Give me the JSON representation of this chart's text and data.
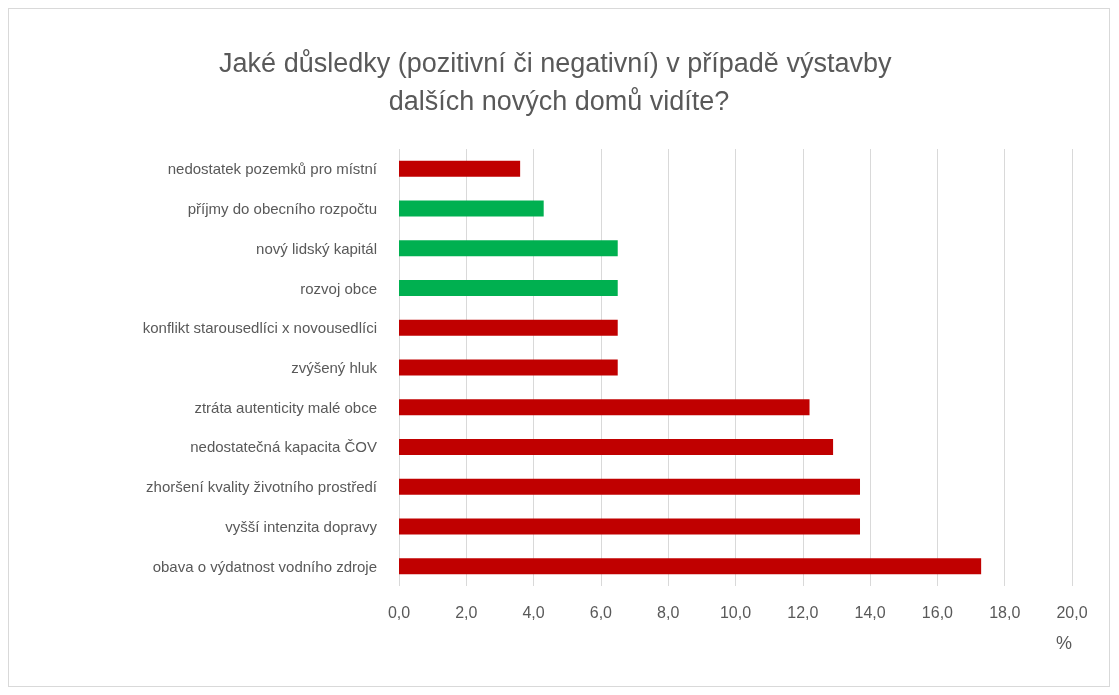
{
  "chart_data": {
    "type": "bar",
    "orientation": "horizontal",
    "title": "Jaké důsledky (pozitivní či negativní) v případě výstavby dalších nových domů vidíte?",
    "xlabel": "%",
    "categories": [
      "nedostatek pozemků pro místní",
      "příjmy do obecního rozpočtu",
      "nový lidský kapitál",
      "rozvoj obce",
      "konflikt starousedlíci x novousedlíci",
      "zvýšený hluk",
      "ztráta autenticity malé obce",
      "nedostatečná kapacita ČOV",
      "zhoršení kvality životního prostředí",
      "vyšší intenzita dopravy",
      "obava o výdatnost vodního zdroje"
    ],
    "values": [
      3.6,
      4.3,
      6.5,
      6.5,
      6.5,
      6.5,
      12.2,
      12.9,
      13.7,
      13.7,
      17.3
    ],
    "colors": [
      "#c00000",
      "#00b050",
      "#00b050",
      "#00b050",
      "#c00000",
      "#c00000",
      "#c00000",
      "#c00000",
      "#c00000",
      "#c00000",
      "#c00000"
    ],
    "xlim": [
      0,
      20
    ],
    "xticks": [
      {
        "value": 0,
        "label": "0,0"
      },
      {
        "value": 2,
        "label": "2,0"
      },
      {
        "value": 4,
        "label": "4,0"
      },
      {
        "value": 6,
        "label": "6,0"
      },
      {
        "value": 8,
        "label": "8,0"
      },
      {
        "value": 10,
        "label": "10,0"
      },
      {
        "value": 12,
        "label": "12,0"
      },
      {
        "value": 14,
        "label": "14,0"
      },
      {
        "value": 16,
        "label": "16,0"
      },
      {
        "value": 18,
        "label": "18,0"
      },
      {
        "value": 20,
        "label": "20,0"
      }
    ],
    "grid": "x"
  }
}
